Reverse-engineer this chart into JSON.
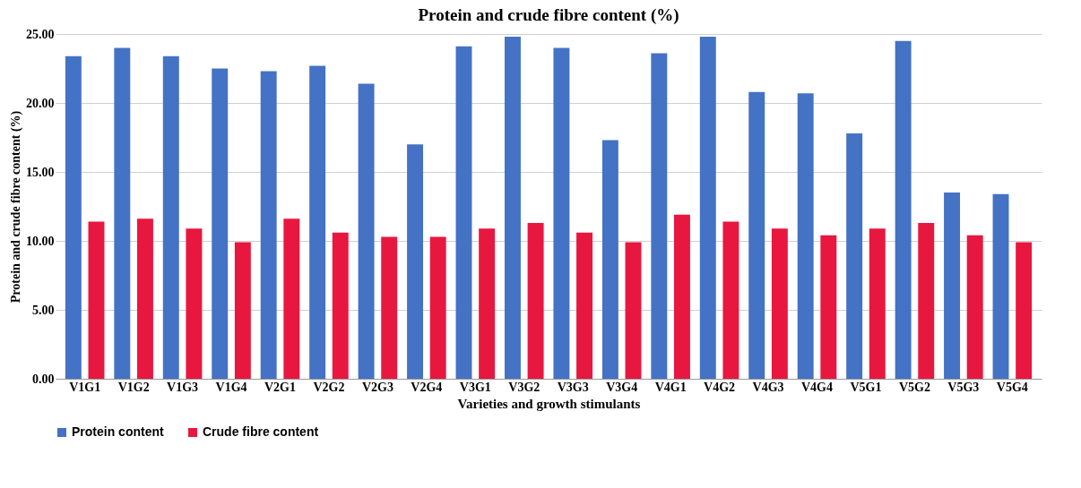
{
  "chart_data": {
    "type": "bar",
    "title": "Protein and crude fibre content (%)",
    "xlabel": "Varieties and growth stimulants",
    "ylabel": "Protein and crude fibre content (%)",
    "categories": [
      "V1G1",
      "V1G2",
      "V1G3",
      "V1G4",
      "V2G1",
      "V2G2",
      "V2G3",
      "V2G4",
      "V3G1",
      "V3G2",
      "V3G3",
      "V3G4",
      "V4G1",
      "V4G2",
      "V4G3",
      "V4G4",
      "V5G1",
      "V5G2",
      "V5G3",
      "V5G4"
    ],
    "series": [
      {
        "name": "Protein content",
        "color": "#4472c4",
        "values": [
          23.4,
          24.0,
          23.4,
          22.5,
          22.3,
          22.7,
          21.4,
          17.0,
          24.1,
          24.8,
          24.0,
          17.3,
          23.6,
          24.8,
          20.8,
          20.7,
          17.8,
          24.5,
          13.5,
          13.4
        ]
      },
      {
        "name": "Crude fibre content",
        "color": "#e8173f",
        "values": [
          11.4,
          11.6,
          10.9,
          9.9,
          11.6,
          10.6,
          10.3,
          10.3,
          10.9,
          11.3,
          10.6,
          9.9,
          11.9,
          11.4,
          10.9,
          10.4,
          10.9,
          11.3,
          10.4,
          9.9
        ]
      }
    ],
    "ylim": [
      0,
      25
    ],
    "yticks": [
      {
        "value": 0,
        "label": "0.00"
      },
      {
        "value": 5,
        "label": "5.00"
      },
      {
        "value": 10,
        "label": "10.00"
      },
      {
        "value": 15,
        "label": "15.00"
      },
      {
        "value": 20,
        "label": "20.00"
      },
      {
        "value": 25,
        "label": "25.00"
      }
    ],
    "grid": "y",
    "legend": "bottom"
  }
}
